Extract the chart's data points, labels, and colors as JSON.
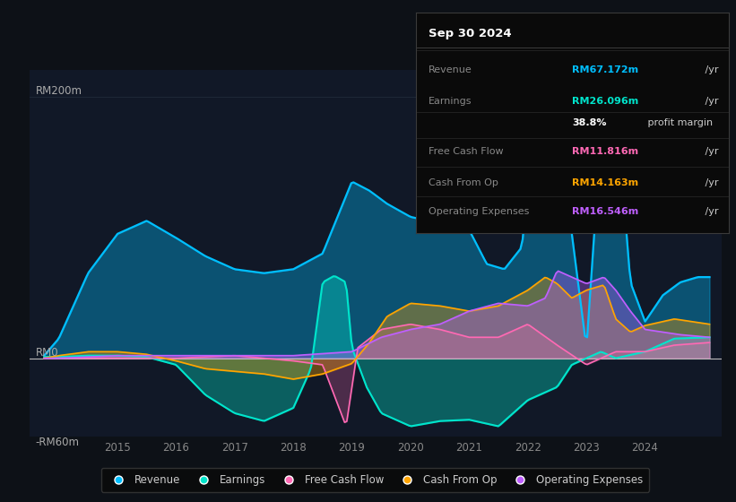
{
  "bg_color": "#0d1117",
  "plot_bg_color": "#111827",
  "title_box": {
    "title": "Sep 30 2024",
    "rows": [
      {
        "label": "Revenue",
        "value": "RM67.172m",
        "unit": " /yr",
        "color": "#00bfff"
      },
      {
        "label": "Earnings",
        "value": "RM26.096m",
        "unit": " /yr",
        "color": "#00e5cc"
      },
      {
        "label": "",
        "value": "38.8%",
        "unit": " profit margin",
        "color": "#ffffff"
      },
      {
        "label": "Free Cash Flow",
        "value": "RM11.816m",
        "unit": " /yr",
        "color": "#ff69b4"
      },
      {
        "label": "Cash From Op",
        "value": "RM14.163m",
        "unit": " /yr",
        "color": "#ffa500"
      },
      {
        "label": "Operating Expenses",
        "value": "RM16.546m",
        "unit": " /yr",
        "color": "#bf5fff"
      }
    ]
  },
  "ylim": [
    -60,
    220
  ],
  "xlim_start": 2013.5,
  "xlim_end": 2025.3,
  "xticks": [
    2015,
    2016,
    2017,
    2018,
    2019,
    2020,
    2021,
    2022,
    2023,
    2024
  ],
  "grid_color": "#1e2736",
  "zero_line_color": "#bbbbbb",
  "colors": {
    "revenue": "#00bfff",
    "earnings": "#00e5cc",
    "fcf": "#ff69b4",
    "cashfromop": "#ffa500",
    "opex": "#bf5fff"
  },
  "fill_alpha": 0.35,
  "legend": [
    {
      "label": "Revenue",
      "color": "#00bfff"
    },
    {
      "label": "Earnings",
      "color": "#00e5cc"
    },
    {
      "label": "Free Cash Flow",
      "color": "#ff69b4"
    },
    {
      "label": "Cash From Op",
      "color": "#ffa500"
    },
    {
      "label": "Operating Expenses",
      "color": "#bf5fff"
    }
  ]
}
